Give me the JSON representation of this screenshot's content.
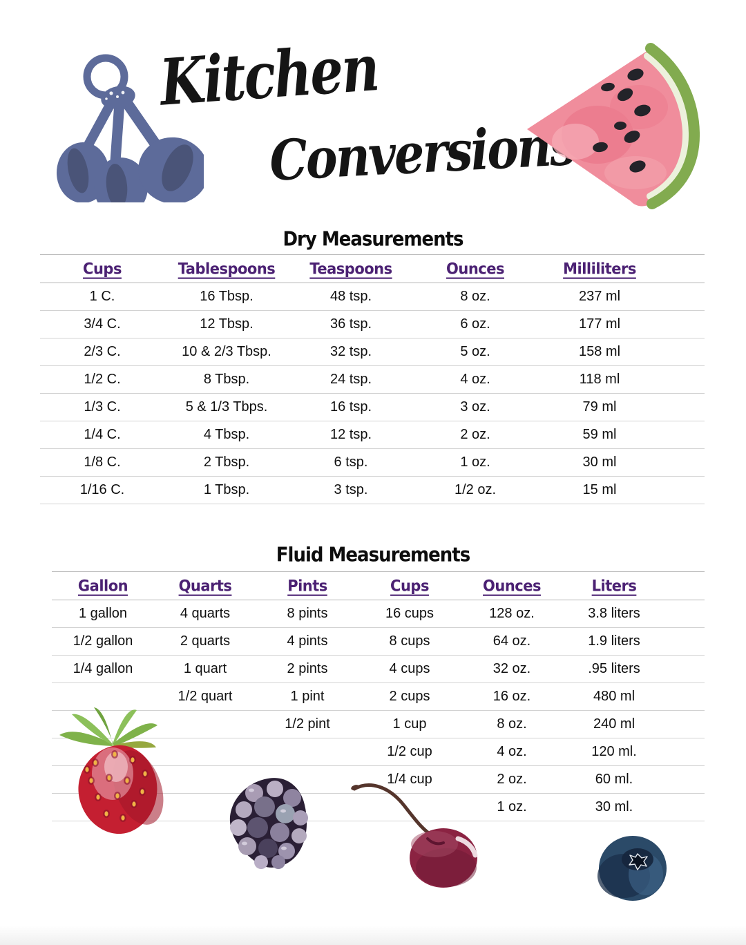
{
  "title": {
    "line1": "Kitchen",
    "line2": "Conversions"
  },
  "colors": {
    "header_purple": "#4b2173",
    "rule_gray": "#d2d2d2",
    "spoon_blue": "#5d6b9a",
    "watermelon_pink": "#f08d9c",
    "watermelon_rind": "#82ab4f",
    "strawberry_red": "#c41f31",
    "cherry_maroon": "#8b2342",
    "blueberry_navy": "#2b4a68",
    "blackberry_plum": "#2a1f35"
  },
  "illustrations": [
    "measuring-spoons",
    "watermelon-slice",
    "strawberry",
    "blackberry",
    "cherry",
    "blueberry"
  ],
  "dry_table": {
    "title": "Dry Measurements",
    "headers": [
      "Cups",
      "Tablespoons",
      "Teaspoons",
      "Ounces",
      "Milliliters"
    ],
    "rows": [
      [
        "1 C.",
        "16 Tbsp.",
        "48 tsp.",
        "8 oz.",
        "237 ml"
      ],
      [
        "3/4 C.",
        "12 Tbsp.",
        "36 tsp.",
        "6 oz.",
        "177 ml"
      ],
      [
        "2/3 C.",
        "10 & 2/3 Tbsp.",
        "32 tsp.",
        "5 oz.",
        "158 ml"
      ],
      [
        "1/2 C.",
        "8 Tbsp.",
        "24 tsp.",
        "4 oz.",
        "118 ml"
      ],
      [
        "1/3 C.",
        "5 & 1/3 Tbps.",
        "16 tsp.",
        "3 oz.",
        "79 ml"
      ],
      [
        "1/4 C.",
        "4 Tbsp.",
        "12 tsp.",
        "2 oz.",
        "59 ml"
      ],
      [
        "1/8 C.",
        "2 Tbsp.",
        "6 tsp.",
        "1 oz.",
        "30 ml"
      ],
      [
        "1/16 C.",
        "1 Tbsp.",
        "3 tsp.",
        "1/2 oz.",
        "15 ml"
      ]
    ]
  },
  "fluid_table": {
    "title": "Fluid Measurements",
    "headers": [
      "Gallon",
      "Quarts",
      "Pints",
      "Cups",
      "Ounces",
      "Liters"
    ],
    "rows": [
      [
        "1 gallon",
        "4 quarts",
        "8 pints",
        "16 cups",
        "128 oz.",
        "3.8 liters"
      ],
      [
        "1/2 gallon",
        "2 quarts",
        "4 pints",
        "8 cups",
        "64 oz.",
        "1.9 liters"
      ],
      [
        "1/4 gallon",
        "1 quart",
        "2 pints",
        "4 cups",
        "32 oz.",
        ".95 liters"
      ],
      [
        "",
        "1/2 quart",
        "1 pint",
        "2 cups",
        "16 oz.",
        "480 ml"
      ],
      [
        "",
        "",
        "1/2 pint",
        "1 cup",
        "8 oz.",
        "240 ml"
      ],
      [
        "",
        "",
        "",
        "1/2 cup",
        "4 oz.",
        "120 ml."
      ],
      [
        "",
        "",
        "",
        "1/4 cup",
        "2 oz.",
        "60 ml."
      ],
      [
        "",
        "",
        "",
        "",
        "1 oz.",
        "30 ml."
      ]
    ]
  }
}
